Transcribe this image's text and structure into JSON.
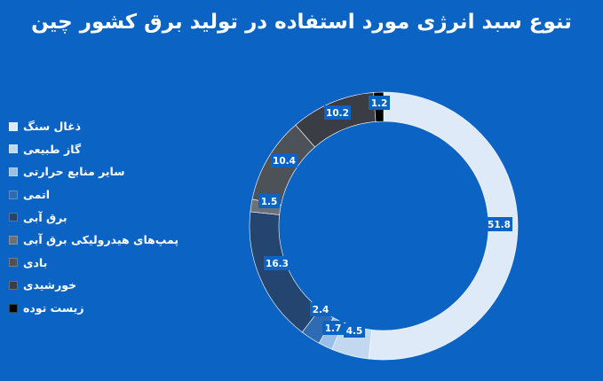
{
  "chart_data": {
    "type": "pie",
    "title": "تنوع سبد انرژی مورد استفاده در تولید برق کشور چین",
    "legend_position": "left",
    "series": [
      {
        "name": "ذغال سنگ",
        "value": 51.8,
        "label": "51.8",
        "color": "#dfeaf8"
      },
      {
        "name": "گاز طبیعی",
        "value": 4.5,
        "label": "4.5",
        "color": "#c2d8f1"
      },
      {
        "name": "سایر منابع حرارتی",
        "value": 1.7,
        "label": "1.7",
        "color": "#99bee8"
      },
      {
        "name": "اتمی",
        "value": 2.4,
        "label": "2.4",
        "color": "#2f6bb3"
      },
      {
        "name": "برق آبی",
        "value": 16.3,
        "label": "16.3",
        "color": "#23456f"
      },
      {
        "name": "پمپ‌های هیدرولیکی برق آبی",
        "value": 1.5,
        "label": "1.5",
        "color": "#6b7178"
      },
      {
        "name": "بادی",
        "value": 10.4,
        "label": "10.4",
        "color": "#4d5259"
      },
      {
        "name": "خورشیدی",
        "value": 10.2,
        "label": "10.2",
        "color": "#3a3e44"
      },
      {
        "name": "زیست توده",
        "value": 1.2,
        "label": "1.2",
        "color": "#050505"
      }
    ]
  }
}
